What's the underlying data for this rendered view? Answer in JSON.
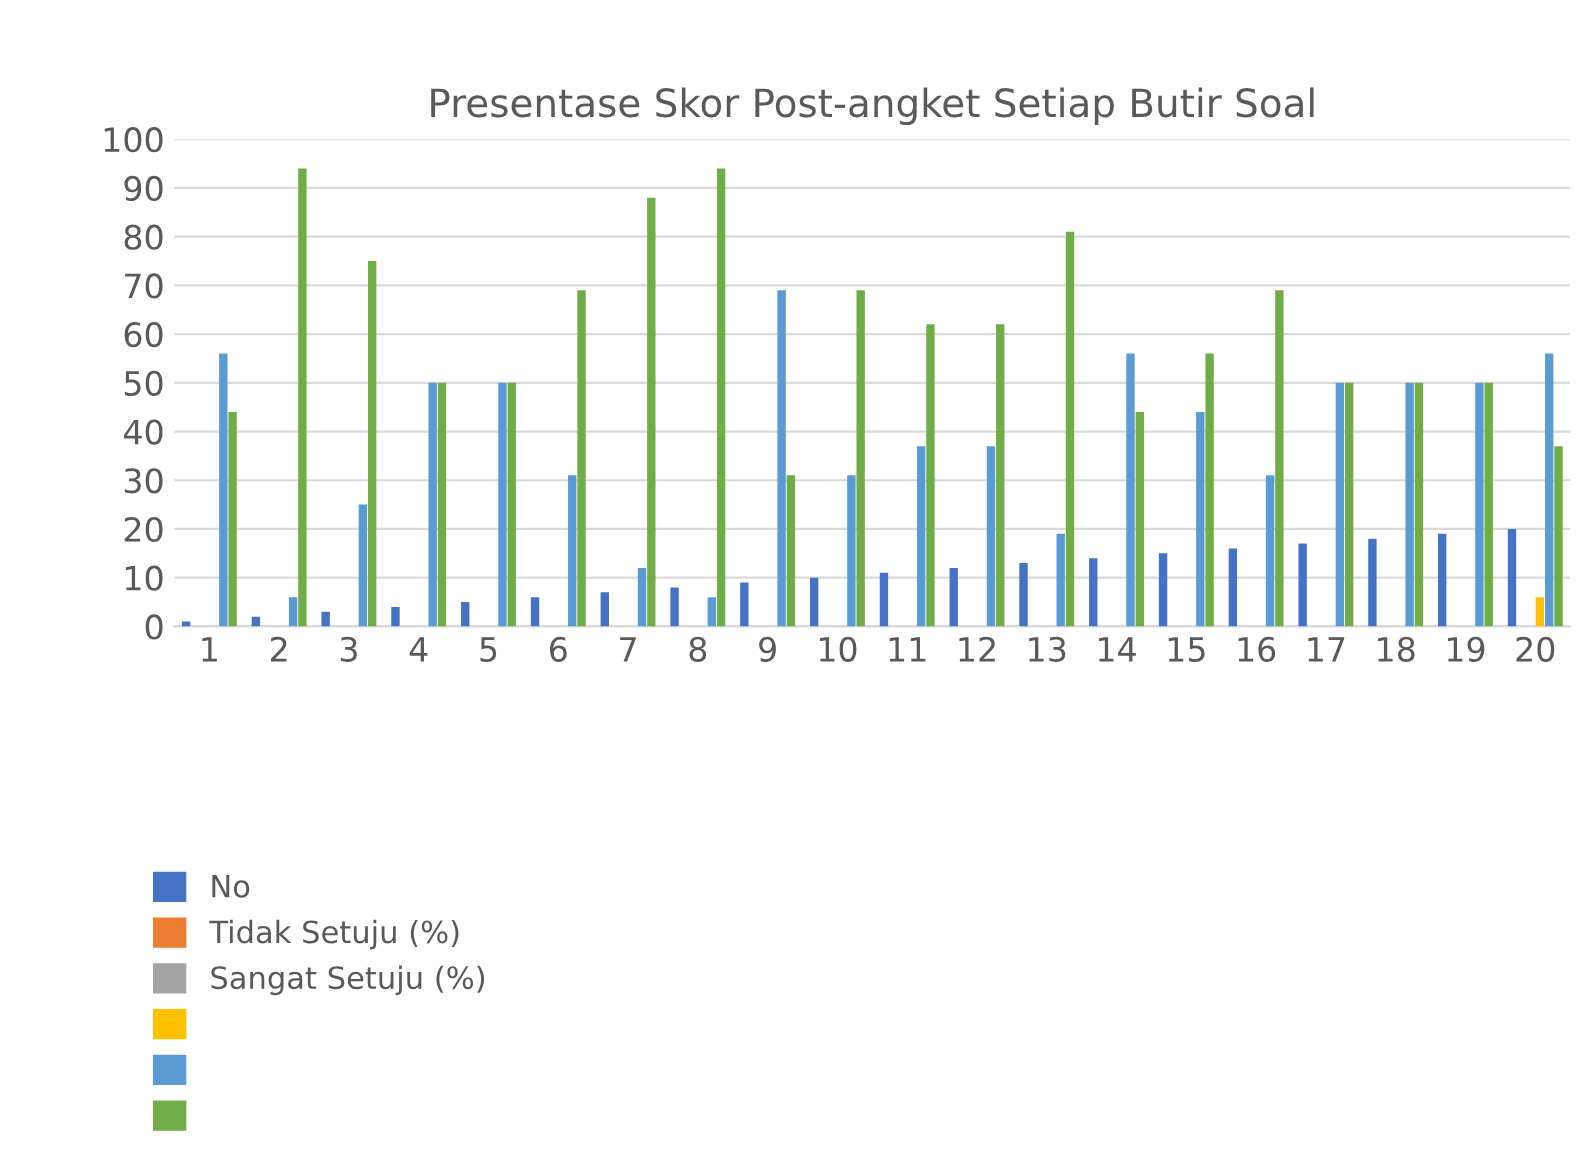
{
  "chart_data": {
    "type": "bar",
    "title": "Presentase Skor Post-angket Setiap Butir Soal",
    "categories": [
      "1",
      "2",
      "3",
      "4",
      "5",
      "6",
      "7",
      "8",
      "9",
      "10",
      "11",
      "12",
      "13",
      "14",
      "15",
      "16",
      "17",
      "18",
      "19",
      "20"
    ],
    "series": [
      {
        "name": "No",
        "color": "#4472c4",
        "values": [
          1,
          2,
          3,
          4,
          5,
          6,
          7,
          8,
          9,
          10,
          11,
          12,
          13,
          14,
          15,
          16,
          17,
          18,
          19,
          20
        ]
      },
      {
        "name": "Tidak Setuju (%)",
        "color": "#ed7d31",
        "values": [
          0,
          0,
          0,
          0,
          0,
          0,
          0,
          0,
          0,
          0,
          0,
          0,
          0,
          0,
          0,
          0,
          0,
          0,
          0,
          0
        ]
      },
      {
        "name": "Sangat Setuju (%)",
        "color": "#a5a5a5",
        "values": [
          0,
          0,
          0,
          0,
          0,
          0,
          0,
          0,
          0,
          0,
          0,
          0,
          0,
          0,
          0,
          0,
          0,
          0,
          0,
          0
        ]
      },
      {
        "color": "#ffc000",
        "values": [
          0,
          0,
          0,
          0,
          0,
          0,
          0,
          0,
          0,
          0,
          0,
          0,
          0,
          0,
          0,
          0,
          0,
          0,
          0,
          6
        ]
      },
      {
        "color": "#5b9bd5",
        "values": [
          56,
          6,
          25,
          50,
          50,
          31,
          12,
          6,
          69,
          31,
          37,
          37,
          19,
          56,
          44,
          31,
          50,
          50,
          50,
          56
        ]
      },
      {
        "color": "#70ad47",
        "values": [
          44,
          94,
          75,
          50,
          50,
          69,
          88,
          94,
          31,
          69,
          62,
          62,
          81,
          44,
          56,
          69,
          50,
          50,
          50,
          37
        ]
      }
    ],
    "ylim": [
      0,
      100
    ],
    "yticks": [
      0,
      10,
      20,
      30,
      40,
      50,
      60,
      70,
      80,
      90,
      100
    ],
    "grid": "y",
    "legend": "bottom left"
  }
}
